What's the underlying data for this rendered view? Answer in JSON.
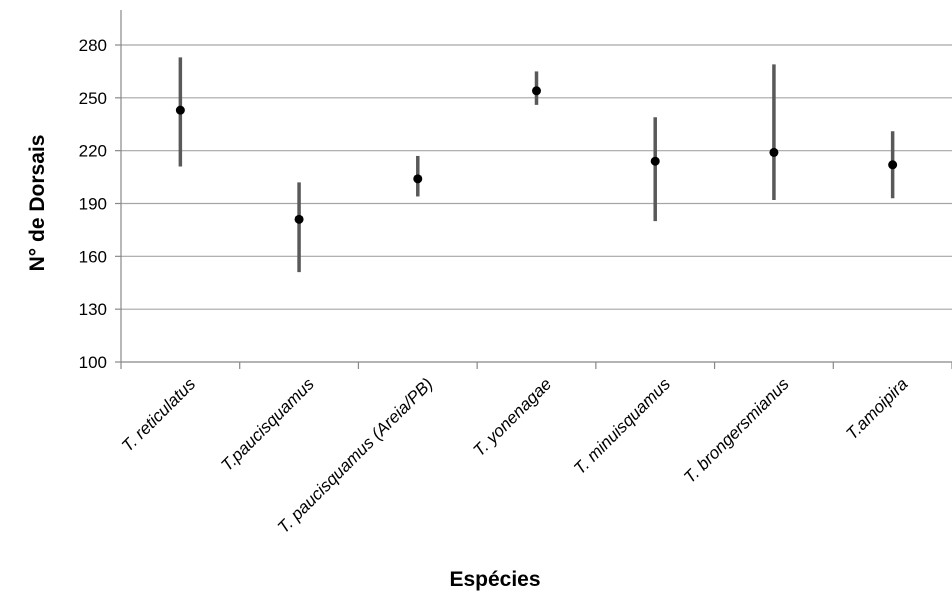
{
  "chart_data": {
    "type": "scatter",
    "title": "",
    "xlabel": "Espécies",
    "ylabel": "N° de Dorsais",
    "ylim": [
      100,
      280
    ],
    "yticks": [
      100,
      130,
      160,
      190,
      220,
      250,
      280
    ],
    "grid": true,
    "categories": [
      "T. reticulatus",
      "T.paucisquamus",
      "T. paucisquamus (Areia/PB)",
      "T. yonenagae",
      "T. minuisquamus",
      "T. brongersmianus",
      "T.amoipira"
    ],
    "means": [
      243,
      181,
      204,
      254,
      214,
      219,
      212
    ],
    "min": [
      211,
      151,
      194,
      246,
      180,
      192,
      193
    ],
    "max": [
      273,
      202,
      217,
      265,
      239,
      269,
      231
    ],
    "colors": {
      "marker": "#000000",
      "range_bar": "#595959",
      "gridline": "#a6a6a6",
      "axis": "#888888"
    }
  }
}
